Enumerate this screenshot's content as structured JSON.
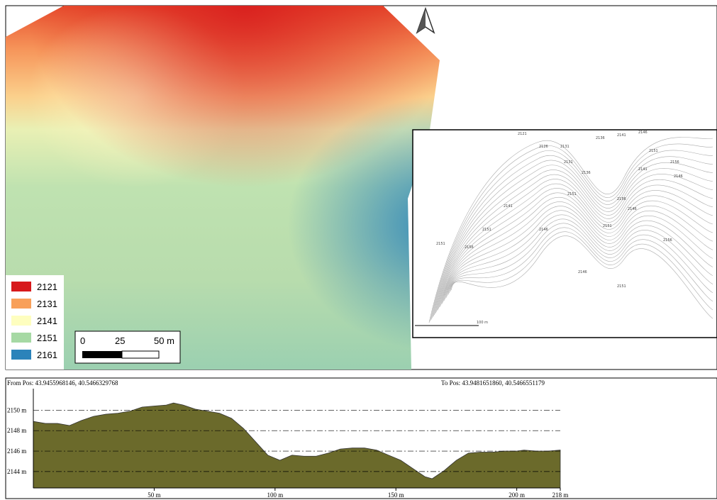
{
  "map": {
    "legend": {
      "items": [
        {
          "label": "2121",
          "color": "#d7191c"
        },
        {
          "label": "2131",
          "color": "#f8a05a"
        },
        {
          "label": "2141",
          "color": "#fefebf"
        },
        {
          "label": "2151",
          "color": "#a6d9a4"
        },
        {
          "label": "2161",
          "color": "#2b83ba"
        }
      ]
    },
    "scale_bar": {
      "labels": [
        "0",
        "25",
        "50 m"
      ]
    }
  },
  "inset": {
    "contour_labels": [
      "2121",
      "2126",
      "2131",
      "2136",
      "2141",
      "2146",
      "2151",
      "2156",
      "2131",
      "2136",
      "2141",
      "2146",
      "2151",
      "2156",
      "2141",
      "2146",
      "2151",
      "2146",
      "2151",
      "2156",
      "2151",
      "2156",
      "2146",
      "2151"
    ],
    "scale_label": "100 m"
  },
  "profile": {
    "from_label": "From Pos: 43.9455968146, 40.5466329768",
    "to_label": "To Pos: 43.9481651860, 40.5466551179",
    "fill": "#6b6a2b",
    "x": [
      0,
      5,
      10,
      15,
      20,
      25,
      30,
      35,
      40,
      45,
      50,
      55,
      58,
      62,
      67,
      72,
      77,
      82,
      87,
      92,
      97,
      102,
      107,
      112,
      117,
      122,
      127,
      132,
      137,
      142,
      147,
      152,
      157,
      162,
      165,
      170,
      175,
      180,
      185,
      190,
      195,
      200,
      203,
      208,
      213,
      218
    ],
    "values": [
      2148.9,
      2148.7,
      2148.7,
      2148.5,
      2149,
      2149.4,
      2149.6,
      2149.7,
      2149.9,
      2150.3,
      2150.4,
      2150.5,
      2150.7,
      2150.5,
      2150.1,
      2149.9,
      2149.7,
      2149.2,
      2148.2,
      2146.9,
      2145.6,
      2145.1,
      2145.6,
      2145.5,
      2145.5,
      2145.8,
      2146.2,
      2146.3,
      2146.3,
      2146.1,
      2145.6,
      2145.1,
      2144.3,
      2143.5,
      2143.3,
      2144.1,
      2145.1,
      2145.8,
      2145.9,
      2145.9,
      2146,
      2146,
      2146.1,
      2146,
      2146,
      2146.1
    ],
    "xlim": [
      0,
      218
    ],
    "ylim": [
      2142.4,
      2152.1
    ],
    "xticks": [
      {
        "value": 50,
        "label": "50 m"
      },
      {
        "value": 100,
        "label": "100 m"
      },
      {
        "value": 150,
        "label": "150 m"
      },
      {
        "value": 200,
        "label": "200 m"
      },
      {
        "value": 218,
        "label": "218 m"
      }
    ],
    "yticks": [
      {
        "value": 2144,
        "label": "2144 m"
      },
      {
        "value": 2146,
        "label": "2146 m"
      },
      {
        "value": 2148,
        "label": "2148 m"
      },
      {
        "value": 2150,
        "label": "2150 m"
      }
    ]
  }
}
